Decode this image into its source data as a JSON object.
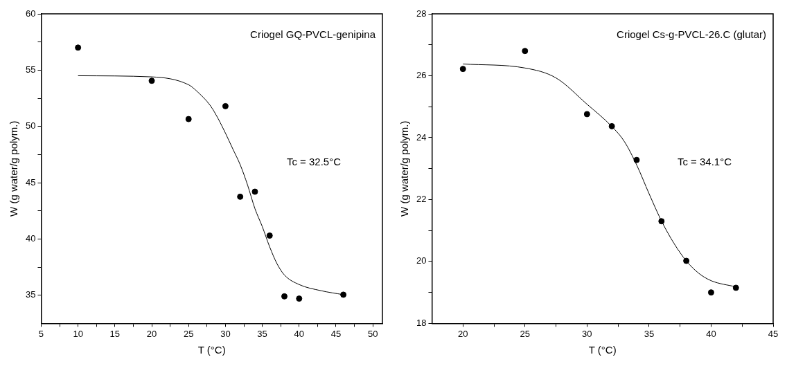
{
  "chart_data": [
    {
      "type": "scatter",
      "xlabel": "T (°C)",
      "ylabel": "W (g water/g polym.)",
      "annotations": [
        "Criogel GQ-PVCL-genipina",
        "Tc = 32.5°C"
      ],
      "xlim": [
        5,
        51.3
      ],
      "xticks": [
        5,
        {
          "value": 7.5,
          "label": null
        },
        10,
        {
          "value": 12.5,
          "label": null
        },
        15,
        {
          "value": 17.5,
          "label": null
        },
        20,
        {
          "value": 22.5,
          "label": null
        },
        25,
        {
          "value": 27.5,
          "label": null
        },
        30,
        {
          "value": 32.5,
          "label": null
        },
        35,
        {
          "value": 37.5,
          "label": null
        },
        40,
        {
          "value": 42.5,
          "label": null
        },
        45,
        {
          "value": 47.5,
          "label": null
        },
        50
      ],
      "ylim": [
        32.5,
        60
      ],
      "yticks": [
        35,
        {
          "value": 37.5,
          "label": null
        },
        40,
        {
          "value": 42.5,
          "label": null
        },
        45,
        {
          "value": 47.5,
          "label": null
        },
        50,
        {
          "value": 52.5,
          "label": null
        },
        55,
        {
          "value": 57.5,
          "label": null
        },
        60
      ],
      "grid": false,
      "legend": false,
      "series": [
        {
          "type": "scatter",
          "color": "#000000",
          "marker": "circle",
          "x": [
            10,
            20,
            25,
            30,
            32,
            34,
            36,
            38,
            40,
            46
          ],
          "values": [
            57.0,
            54.05,
            50.65,
            51.8,
            43.75,
            44.2,
            40.3,
            34.9,
            34.7,
            35.05
          ]
        },
        {
          "type": "line",
          "color": "#000000",
          "marker": "none",
          "line_style": "solid",
          "x": [
            10,
            20,
            25,
            26,
            28,
            29,
            30,
            31,
            32,
            33,
            34,
            35,
            36,
            37,
            38,
            40,
            43,
            46
          ],
          "values": [
            54.5,
            54.4,
            53.7,
            53.2,
            51.8,
            50.7,
            49.4,
            48.0,
            46.6,
            44.8,
            42.7,
            41.1,
            39.3,
            37.8,
            36.8,
            35.95,
            35.4,
            35.05
          ]
        }
      ]
    },
    {
      "type": "scatter",
      "xlabel": "T (°C)",
      "ylabel": "W (g water/g polym.)",
      "annotations": [
        "Criogel Cs-g-PVCL-26.C (glutar)",
        "Tc = 34.1°C"
      ],
      "xlim": [
        17.5,
        45
      ],
      "xticks": [
        20,
        {
          "value": 22.5,
          "label": null
        },
        25,
        {
          "value": 27.5,
          "label": null
        },
        30,
        {
          "value": 32.5,
          "label": null
        },
        35,
        {
          "value": 37.5,
          "label": null
        },
        40,
        {
          "value": 42.5,
          "label": null
        },
        45
      ],
      "ylim": [
        18,
        28
      ],
      "yticks": [
        18,
        {
          "value": 19,
          "label": null
        },
        20,
        {
          "value": 21,
          "label": null
        },
        22,
        {
          "value": 23,
          "label": null
        },
        24,
        {
          "value": 25,
          "label": null
        },
        26,
        {
          "value": 27,
          "label": null
        },
        28
      ],
      "grid": false,
      "legend": false,
      "series": [
        {
          "type": "scatter",
          "color": "#000000",
          "marker": "circle",
          "x": [
            20,
            25,
            30,
            32,
            34,
            36,
            38,
            40,
            42
          ],
          "values": [
            26.22,
            26.8,
            24.76,
            24.37,
            23.28,
            21.3,
            20.02,
            19.0,
            19.15
          ]
        },
        {
          "type": "line",
          "color": "#000000",
          "marker": "none",
          "line_style": "solid",
          "x": [
            20,
            25,
            27.5,
            30,
            32,
            33,
            34,
            35,
            36,
            37,
            38,
            39,
            40,
            42
          ],
          "values": [
            26.38,
            26.25,
            25.93,
            25.08,
            24.36,
            23.88,
            23.12,
            22.19,
            21.31,
            20.59,
            20.02,
            19.62,
            19.38,
            19.18
          ]
        }
      ]
    }
  ]
}
